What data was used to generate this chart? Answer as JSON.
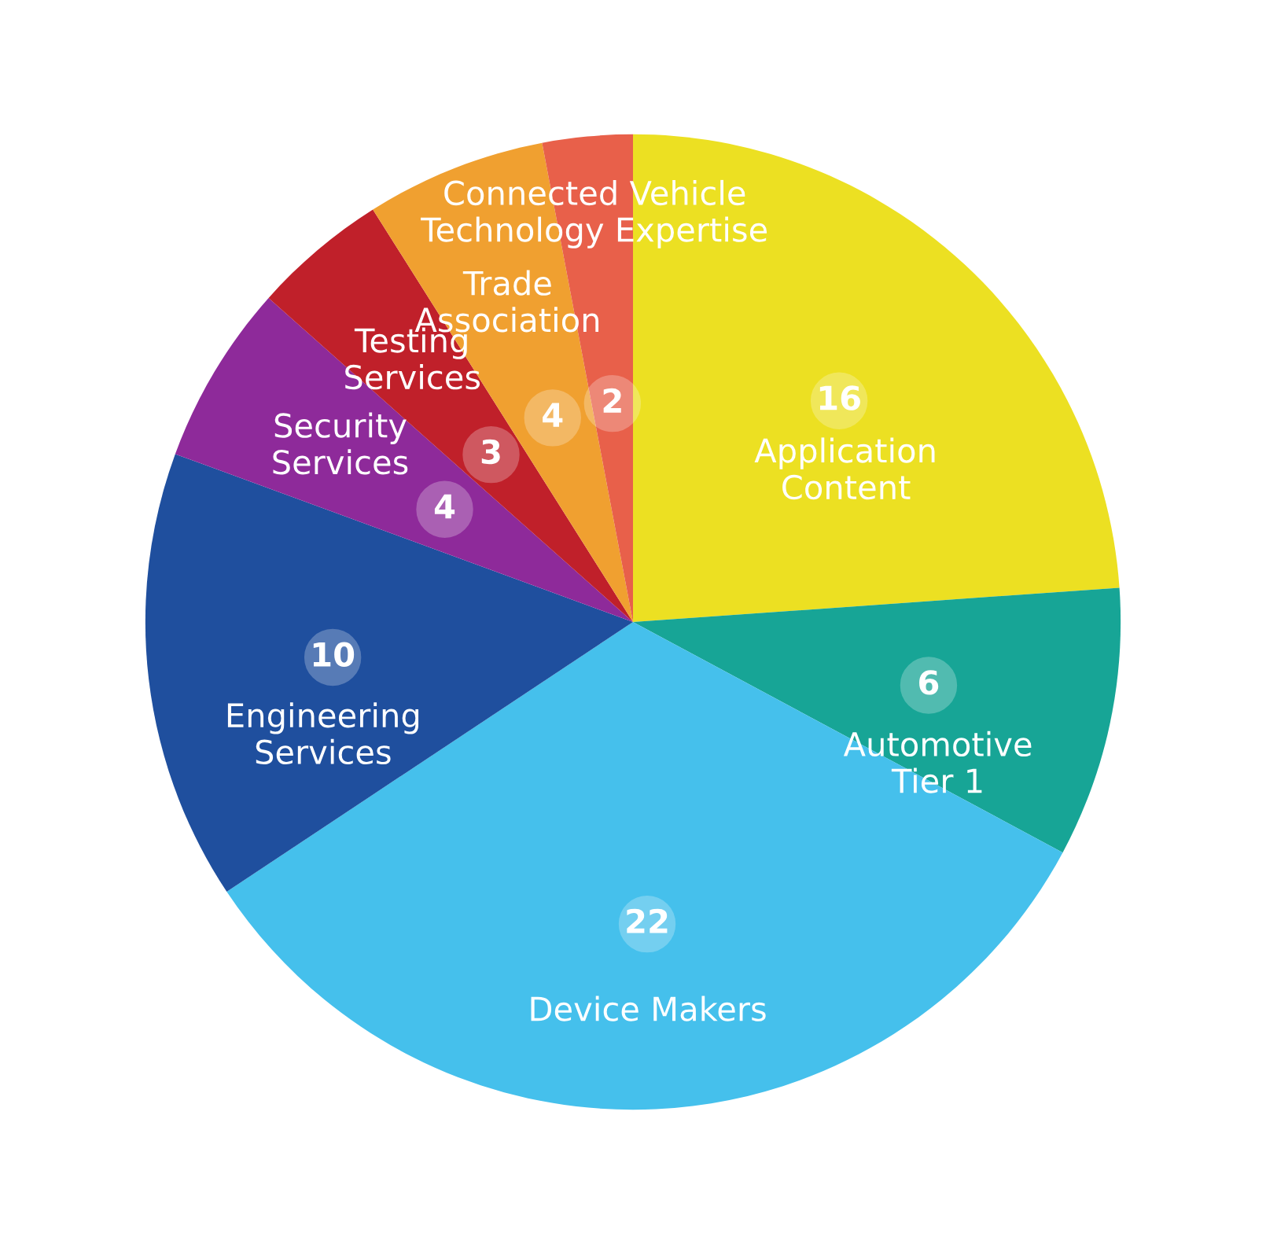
{
  "chart_data": {
    "type": "pie",
    "categories": [
      "Application\nContent",
      "Automotive\nTier 1",
      "Device Makers",
      "Engineering\nServices",
      "Security\nServices",
      "Testing\nServices",
      "Trade\nAssociation",
      "Connected Vehicle\nTechnology Expertise"
    ],
    "values": [
      16,
      6,
      22,
      10,
      4,
      3,
      4,
      2
    ],
    "colors": [
      "#ece022",
      "#17a596",
      "#45c0ec",
      "#1f4f9e",
      "#8e2a9a",
      "#c0202a",
      "#f0a030",
      "#e8604a"
    ],
    "data_labels": true,
    "legend": false
  }
}
